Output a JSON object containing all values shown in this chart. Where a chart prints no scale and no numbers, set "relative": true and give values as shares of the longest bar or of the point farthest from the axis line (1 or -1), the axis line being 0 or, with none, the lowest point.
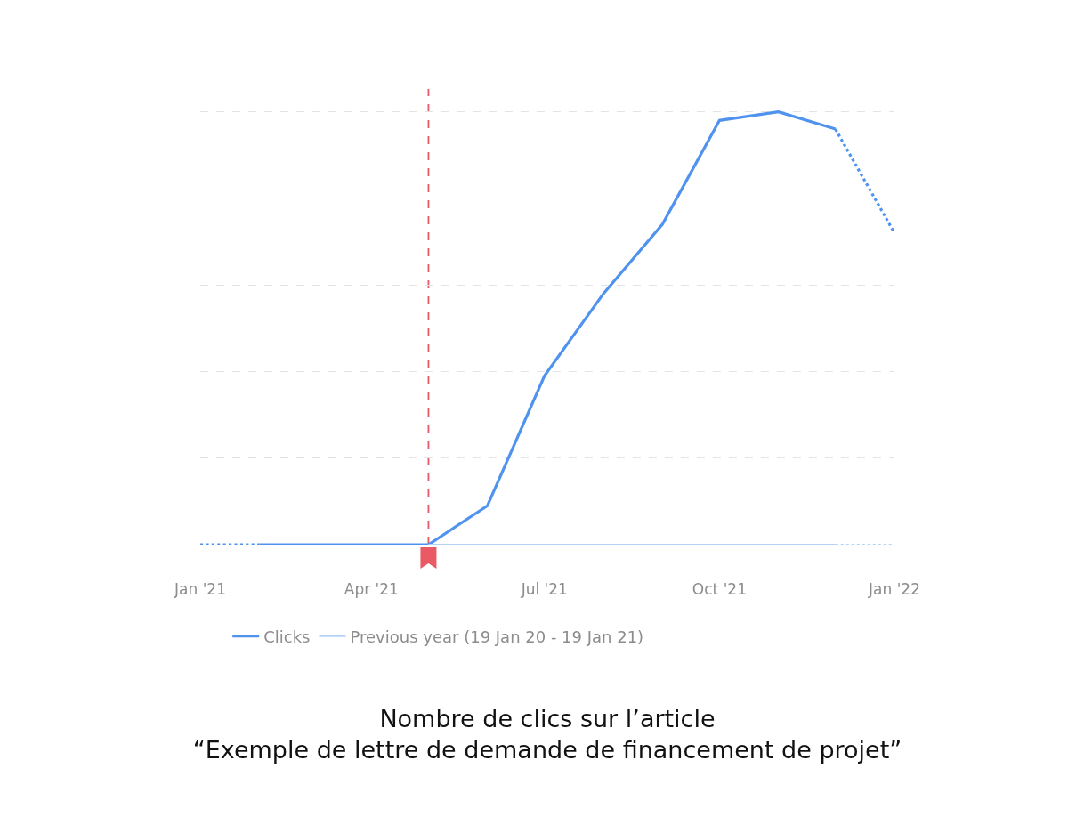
{
  "chart_data": {
    "type": "line",
    "title": "Nombre de clics sur l’article\n“Exemple de lettre de demande de financement de projet”",
    "relative": true,
    "tick_labels": "x",
    "grid": "y",
    "legend": "bottom",
    "xlim": [
      "2021-01-01",
      "2022-01-01"
    ],
    "xticks": [
      {
        "value": "2021-01-01",
        "label": "Jan '21"
      },
      {
        "value": "2021-04-01",
        "label": "Apr '21"
      },
      {
        "value": "2021-07-01",
        "label": "Jul '21"
      },
      {
        "value": "2021-10-01",
        "label": "Oct '21"
      },
      {
        "value": "2022-01-01",
        "label": "Jan '22"
      }
    ],
    "series": [
      {
        "name": "Clicks",
        "color": "#4f93ee",
        "x": [
          "2021-02-01",
          "2021-03-01",
          "2021-04-01",
          "2021-05-01",
          "2021-06-01",
          "2021-07-01",
          "2021-08-01",
          "2021-09-01",
          "2021-10-01",
          "2021-11-01",
          "2021-12-01"
        ],
        "values": [
          0,
          0,
          0,
          0,
          0.09,
          0.39,
          0.58,
          0.74,
          0.98,
          1,
          0.96
        ]
      },
      {
        "color": "#4f93ee",
        "line_style": "dotted",
        "x": [
          "2021-01-01",
          "2021-02-01"
        ],
        "values": [
          0,
          0
        ]
      },
      {
        "color": "#4f93ee",
        "line_style": "dotted",
        "x": [
          "2021-12-01",
          "2022-01-01"
        ],
        "values": [
          0.96,
          0.72
        ]
      },
      {
        "name": "Previous year (19 Jan 20 - 19 Jan 21)",
        "color": "#b4d2f6",
        "x": [
          "2021-05-01",
          "2021-06-01",
          "2021-07-01",
          "2021-08-01",
          "2021-09-01",
          "2021-10-01",
          "2021-11-01",
          "2021-12-01"
        ],
        "values": [
          0,
          0,
          0,
          0,
          0,
          0,
          0,
          0
        ]
      },
      {
        "color": "#b4d2f6",
        "line_style": "dotted",
        "x": [
          "2021-12-01",
          "2022-01-01"
        ],
        "values": [
          0,
          0
        ]
      }
    ],
    "ref_lines": [
      {
        "axis": "x",
        "value": "2021-05-01",
        "color": "#ea5a64",
        "line_style": "dashed"
      }
    ]
  }
}
